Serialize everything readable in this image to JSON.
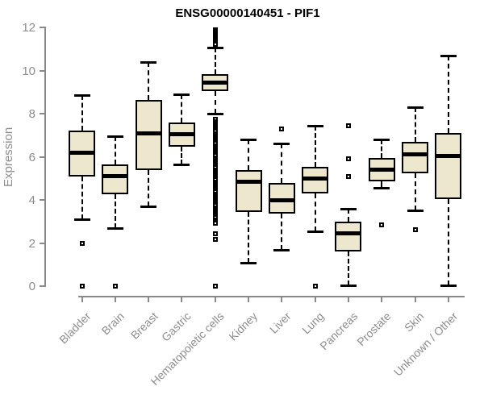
{
  "chart_data": {
    "type": "boxplot",
    "title": "ENSG00000140451 - PIF1",
    "ylabel": "Expression",
    "xlabel": "",
    "ylim": [
      0,
      12
    ],
    "yticks": [
      0,
      2,
      4,
      6,
      8,
      10,
      12
    ],
    "grid": false,
    "legend": false,
    "categories": [
      "Bladder",
      "Brain",
      "Breast",
      "Gastric",
      "Hematopoietic cells",
      "Kidney",
      "Liver",
      "Lung",
      "Pancreas",
      "Prostate",
      "Skin",
      "Unknown / Other"
    ],
    "boxes": [
      {
        "category": "Bladder",
        "whisker_low": 3.1,
        "q1": 5.1,
        "median": 6.2,
        "q3": 7.2,
        "whisker_high": 8.85,
        "outliers": [
          2.0,
          0.0
        ]
      },
      {
        "category": "Brain",
        "whisker_low": 2.7,
        "q1": 4.25,
        "median": 5.1,
        "q3": 5.65,
        "whisker_high": 6.95,
        "outliers": [
          0.0
        ]
      },
      {
        "category": "Breast",
        "whisker_low": 3.7,
        "q1": 5.4,
        "median": 7.1,
        "q3": 8.65,
        "whisker_high": 10.4,
        "outliers": []
      },
      {
        "category": "Gastric",
        "whisker_low": 5.65,
        "q1": 6.45,
        "median": 7.05,
        "q3": 7.6,
        "whisker_high": 8.9,
        "outliers": []
      },
      {
        "category": "Hematopoietic cells",
        "whisker_low": 8.0,
        "q1": 9.05,
        "median": 9.45,
        "q3": 9.85,
        "whisker_high": 11.05,
        "outliers": [
          11.9,
          11.83,
          11.76,
          11.69,
          11.62,
          11.55,
          11.48,
          11.41,
          11.34,
          11.27,
          11.2,
          7.72,
          7.64,
          7.56,
          7.48,
          7.4,
          7.32,
          7.24,
          7.16,
          7.08,
          7.0,
          6.92,
          6.84,
          6.76,
          6.68,
          6.6,
          6.52,
          6.44,
          6.36,
          6.28,
          6.2,
          6.12,
          6.04,
          5.96,
          5.88,
          5.8,
          5.72,
          5.64,
          5.56,
          5.48,
          5.4,
          5.32,
          5.24,
          5.16,
          5.08,
          5.0,
          4.92,
          4.84,
          4.76,
          4.68,
          4.6,
          4.52,
          4.44,
          4.36,
          4.28,
          4.2,
          4.12,
          4.04,
          3.96,
          3.88,
          3.8,
          3.72,
          3.64,
          3.56,
          3.48,
          3.4,
          3.32,
          3.24,
          3.16,
          3.08,
          3.0,
          2.92,
          2.43,
          2.17,
          0.0
        ]
      },
      {
        "category": "Kidney",
        "whisker_low": 1.1,
        "q1": 3.45,
        "median": 4.85,
        "q3": 5.4,
        "whisker_high": 6.8,
        "outliers": []
      },
      {
        "category": "Liver",
        "whisker_low": 1.7,
        "q1": 3.35,
        "median": 4.0,
        "q3": 4.8,
        "whisker_high": 6.6,
        "outliers": [
          7.3
        ]
      },
      {
        "category": "Lung",
        "whisker_low": 2.55,
        "q1": 4.3,
        "median": 5.0,
        "q3": 5.55,
        "whisker_high": 7.45,
        "outliers": [
          0.0
        ]
      },
      {
        "category": "Pancreas",
        "whisker_low": 0.05,
        "q1": 1.6,
        "median": 2.45,
        "q3": 3.0,
        "whisker_high": 3.6,
        "outliers": [
          7.45,
          5.9,
          5.1
        ]
      },
      {
        "category": "Prostate",
        "whisker_low": 4.55,
        "q1": 4.85,
        "median": 5.4,
        "q3": 5.95,
        "whisker_high": 6.8,
        "outliers": [
          2.85
        ]
      },
      {
        "category": "Skin",
        "whisker_low": 3.5,
        "q1": 5.25,
        "median": 6.1,
        "q3": 6.7,
        "whisker_high": 8.3,
        "outliers": [
          2.6
        ]
      },
      {
        "category": "Unknown / Other",
        "whisker_low": 0.05,
        "q1": 4.05,
        "median": 6.05,
        "q3": 7.1,
        "whisker_high": 10.7,
        "outliers": []
      }
    ],
    "colors": {
      "box_fill": "#ede7cd",
      "box_border": "#000000",
      "median": "#000000",
      "axis": "#8a8a8a",
      "tick_label": "#8d8d90",
      "title": "#000000",
      "background": "#ffffff"
    }
  }
}
